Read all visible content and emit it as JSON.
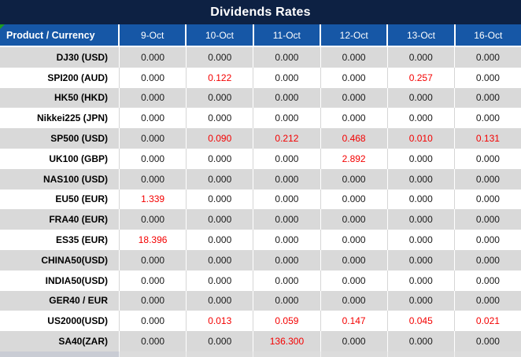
{
  "title": "Dividends Rates",
  "colors": {
    "title_bg": "#0d2143",
    "header_bg": "#1657a6",
    "row_alt_bg": "#d9d9d9",
    "value_text": "#1a1a1a",
    "highlight_red": "#f40000",
    "corner_triangle_green": "#1e9c23"
  },
  "table": {
    "product_header": "Product / Currency",
    "date_headers": [
      "9-Oct",
      "10-Oct",
      "11-Oct",
      "12-Oct",
      "13-Oct",
      "16-Oct"
    ],
    "rows": [
      {
        "product": "DJ30 (USD)",
        "values": [
          "0.000",
          "0.000",
          "0.000",
          "0.000",
          "0.000",
          "0.000"
        ],
        "red": [
          false,
          false,
          false,
          false,
          false,
          false
        ]
      },
      {
        "product": "SPI200 (AUD)",
        "values": [
          "0.000",
          "0.122",
          "0.000",
          "0.000",
          "0.257",
          "0.000"
        ],
        "red": [
          false,
          true,
          false,
          false,
          true,
          false
        ]
      },
      {
        "product": "HK50 (HKD)",
        "values": [
          "0.000",
          "0.000",
          "0.000",
          "0.000",
          "0.000",
          "0.000"
        ],
        "red": [
          false,
          false,
          false,
          false,
          false,
          false
        ]
      },
      {
        "product": "Nikkei225 (JPN)",
        "values": [
          "0.000",
          "0.000",
          "0.000",
          "0.000",
          "0.000",
          "0.000"
        ],
        "red": [
          false,
          false,
          false,
          false,
          false,
          false
        ]
      },
      {
        "product": "SP500 (USD)",
        "values": [
          "0.000",
          "0.090",
          "0.212",
          "0.468",
          "0.010",
          "0.131"
        ],
        "red": [
          false,
          true,
          true,
          true,
          true,
          true
        ]
      },
      {
        "product": "UK100 (GBP)",
        "values": [
          "0.000",
          "0.000",
          "0.000",
          "2.892",
          "0.000",
          "0.000"
        ],
        "red": [
          false,
          false,
          false,
          true,
          false,
          false
        ]
      },
      {
        "product": "NAS100 (USD)",
        "values": [
          "0.000",
          "0.000",
          "0.000",
          "0.000",
          "0.000",
          "0.000"
        ],
        "red": [
          false,
          false,
          false,
          false,
          false,
          false
        ]
      },
      {
        "product": "EU50 (EUR)",
        "values": [
          "1.339",
          "0.000",
          "0.000",
          "0.000",
          "0.000",
          "0.000"
        ],
        "red": [
          true,
          false,
          false,
          false,
          false,
          false
        ]
      },
      {
        "product": "FRA40 (EUR)",
        "values": [
          "0.000",
          "0.000",
          "0.000",
          "0.000",
          "0.000",
          "0.000"
        ],
        "red": [
          false,
          false,
          false,
          false,
          false,
          false
        ]
      },
      {
        "product": "ES35 (EUR)",
        "values": [
          "18.396",
          "0.000",
          "0.000",
          "0.000",
          "0.000",
          "0.000"
        ],
        "red": [
          true,
          false,
          false,
          false,
          false,
          false
        ]
      },
      {
        "product": "CHINA50(USD)",
        "values": [
          "0.000",
          "0.000",
          "0.000",
          "0.000",
          "0.000",
          "0.000"
        ],
        "red": [
          false,
          false,
          false,
          false,
          false,
          false
        ]
      },
      {
        "product": "INDIA50(USD)",
        "values": [
          "0.000",
          "0.000",
          "0.000",
          "0.000",
          "0.000",
          "0.000"
        ],
        "red": [
          false,
          false,
          false,
          false,
          false,
          false
        ]
      },
      {
        "product": "GER40 / EUR",
        "values": [
          "0.000",
          "0.000",
          "0.000",
          "0.000",
          "0.000",
          "0.000"
        ],
        "red": [
          false,
          false,
          false,
          false,
          false,
          false
        ]
      },
      {
        "product": "US2000(USD)",
        "values": [
          "0.000",
          "0.013",
          "0.059",
          "0.147",
          "0.045",
          "0.021"
        ],
        "red": [
          false,
          true,
          true,
          true,
          true,
          true
        ]
      },
      {
        "product": "SA40(ZAR)",
        "values": [
          "0.000",
          "0.000",
          "136.300",
          "0.000",
          "0.000",
          "0.000"
        ],
        "red": [
          false,
          false,
          true,
          false,
          false,
          false
        ]
      }
    ]
  }
}
